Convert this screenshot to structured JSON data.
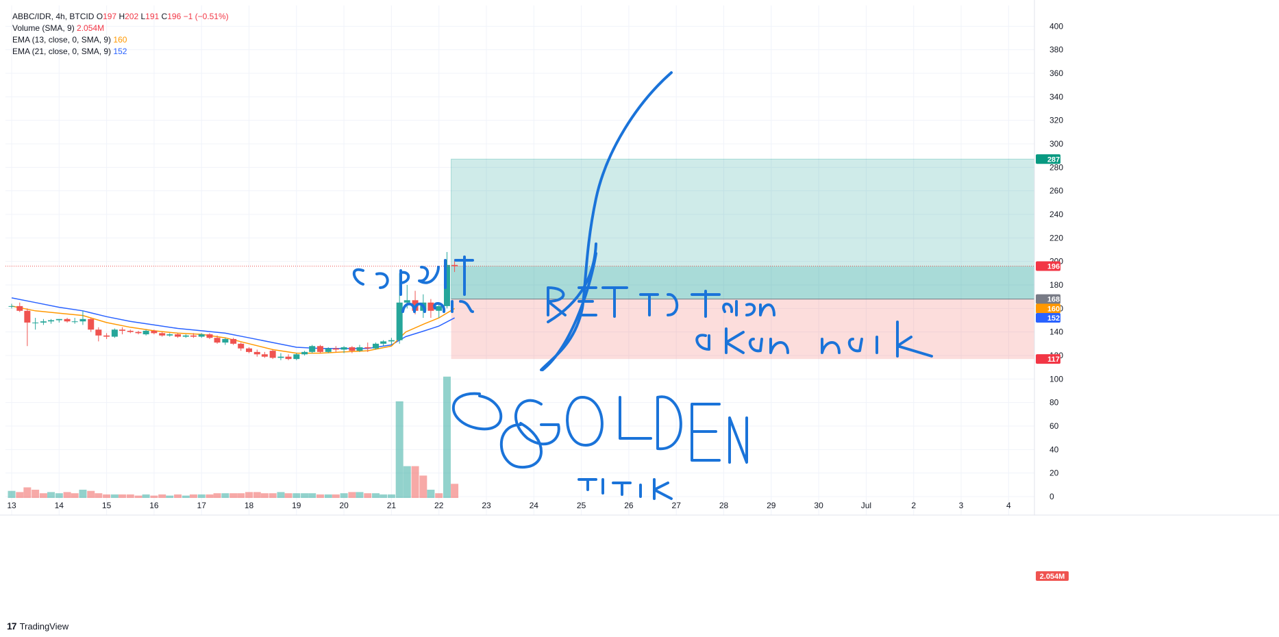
{
  "legend": {
    "symbol": "ABBC/IDR, 4h, BTCID",
    "o_label": "O",
    "o_value": "197",
    "h_label": "H",
    "h_value": "202",
    "l_label": "L",
    "l_value": "191",
    "c_label": "C",
    "c_value": "196",
    "change": "−1 (−0.51%)",
    "volume_label": "Volume (SMA, 9)",
    "volume_value": "2.054M",
    "ema13_label": "EMA (13, close, 0, SMA, 9)",
    "ema13_value": "160",
    "ema21_label": "EMA (21, close, 0, SMA, 9)",
    "ema21_value": "152"
  },
  "brand": {
    "logo": "17",
    "name": "TradingView"
  },
  "colors": {
    "up": "#26a69a",
    "down": "#ef5350",
    "ema13": "#ff9800",
    "ema21": "#2962ff",
    "target": "#089981",
    "stop": "#f23645",
    "entry": "#787b86",
    "annotation": "#1a73d9"
  },
  "chart_data": {
    "type": "candlestick",
    "price_axis": {
      "range": [
        0,
        410
      ],
      "ticks": [
        0,
        20,
        40,
        60,
        80,
        100,
        120,
        140,
        160,
        180,
        200,
        220,
        240,
        260,
        280,
        300,
        320,
        340,
        360,
        380,
        400
      ]
    },
    "time_axis": {
      "ticks": [
        "13",
        "14",
        "15",
        "16",
        "17",
        "18",
        "19",
        "20",
        "21",
        "22",
        "23",
        "24",
        "25",
        "26",
        "27",
        "28",
        "29",
        "30",
        "Jul",
        "2",
        "3",
        "4"
      ],
      "range_days": [
        13,
        35
      ]
    },
    "candles": [
      {
        "t": 13.0,
        "o": 162,
        "h": 164,
        "l": 160,
        "c": 162
      },
      {
        "t": 13.17,
        "o": 162,
        "h": 165,
        "l": 157,
        "c": 158
      },
      {
        "t": 13.33,
        "o": 158,
        "h": 160,
        "l": 128,
        "c": 148
      },
      {
        "t": 13.5,
        "o": 148,
        "h": 152,
        "l": 142,
        "c": 148
      },
      {
        "t": 13.67,
        "o": 148,
        "h": 151,
        "l": 146,
        "c": 149
      },
      {
        "t": 13.83,
        "o": 149,
        "h": 151,
        "l": 147,
        "c": 150
      },
      {
        "t": 14.0,
        "o": 150,
        "h": 151,
        "l": 148,
        "c": 151
      },
      {
        "t": 14.17,
        "o": 151,
        "h": 152,
        "l": 148,
        "c": 149
      },
      {
        "t": 14.33,
        "o": 149,
        "h": 152,
        "l": 147,
        "c": 149
      },
      {
        "t": 14.5,
        "o": 149,
        "h": 158,
        "l": 146,
        "c": 151
      },
      {
        "t": 14.67,
        "o": 151,
        "h": 152,
        "l": 140,
        "c": 142
      },
      {
        "t": 14.83,
        "o": 142,
        "h": 144,
        "l": 132,
        "c": 137
      },
      {
        "t": 15.0,
        "o": 137,
        "h": 139,
        "l": 134,
        "c": 136
      },
      {
        "t": 15.17,
        "o": 136,
        "h": 143,
        "l": 135,
        "c": 142
      },
      {
        "t": 15.33,
        "o": 142,
        "h": 144,
        "l": 138,
        "c": 141
      },
      {
        "t": 15.5,
        "o": 141,
        "h": 142,
        "l": 139,
        "c": 140
      },
      {
        "t": 15.67,
        "o": 140,
        "h": 141,
        "l": 138,
        "c": 139
      },
      {
        "t": 15.83,
        "o": 138,
        "h": 142,
        "l": 137,
        "c": 141
      },
      {
        "t": 16.0,
        "o": 141,
        "h": 142,
        "l": 138,
        "c": 139
      },
      {
        "t": 16.17,
        "o": 139,
        "h": 140,
        "l": 136,
        "c": 137
      },
      {
        "t": 16.33,
        "o": 137,
        "h": 139,
        "l": 136,
        "c": 138
      },
      {
        "t": 16.5,
        "o": 138,
        "h": 139,
        "l": 135,
        "c": 136
      },
      {
        "t": 16.67,
        "o": 136,
        "h": 138,
        "l": 135,
        "c": 137
      },
      {
        "t": 16.83,
        "o": 137,
        "h": 139,
        "l": 135,
        "c": 136
      },
      {
        "t": 17.0,
        "o": 136,
        "h": 139,
        "l": 135,
        "c": 138
      },
      {
        "t": 17.17,
        "o": 138,
        "h": 139,
        "l": 134,
        "c": 135
      },
      {
        "t": 17.33,
        "o": 135,
        "h": 137,
        "l": 130,
        "c": 131
      },
      {
        "t": 17.5,
        "o": 131,
        "h": 135,
        "l": 129,
        "c": 134
      },
      {
        "t": 17.67,
        "o": 134,
        "h": 135,
        "l": 129,
        "c": 130
      },
      {
        "t": 17.83,
        "o": 130,
        "h": 131,
        "l": 124,
        "c": 126
      },
      {
        "t": 18.0,
        "o": 126,
        "h": 127,
        "l": 122,
        "c": 123
      },
      {
        "t": 18.17,
        "o": 123,
        "h": 125,
        "l": 119,
        "c": 121
      },
      {
        "t": 18.33,
        "o": 121,
        "h": 123,
        "l": 118,
        "c": 119
      },
      {
        "t": 18.5,
        "o": 124,
        "h": 125,
        "l": 117,
        "c": 118
      },
      {
        "t": 18.67,
        "o": 118,
        "h": 122,
        "l": 116,
        "c": 119
      },
      {
        "t": 18.83,
        "o": 119,
        "h": 121,
        "l": 116,
        "c": 117
      },
      {
        "t": 19.0,
        "o": 117,
        "h": 122,
        "l": 116,
        "c": 121
      },
      {
        "t": 19.17,
        "o": 121,
        "h": 124,
        "l": 120,
        "c": 123
      },
      {
        "t": 19.33,
        "o": 123,
        "h": 129,
        "l": 122,
        "c": 128
      },
      {
        "t": 19.5,
        "o": 128,
        "h": 129,
        "l": 122,
        "c": 123
      },
      {
        "t": 19.67,
        "o": 123,
        "h": 127,
        "l": 122,
        "c": 126
      },
      {
        "t": 19.83,
        "o": 126,
        "h": 128,
        "l": 123,
        "c": 125
      },
      {
        "t": 20.0,
        "o": 125,
        "h": 128,
        "l": 122,
        "c": 127
      },
      {
        "t": 20.17,
        "o": 127,
        "h": 128,
        "l": 122,
        "c": 124
      },
      {
        "t": 20.33,
        "o": 124,
        "h": 129,
        "l": 123,
        "c": 127
      },
      {
        "t": 20.5,
        "o": 127,
        "h": 131,
        "l": 123,
        "c": 126
      },
      {
        "t": 20.67,
        "o": 126,
        "h": 131,
        "l": 125,
        "c": 130
      },
      {
        "t": 20.83,
        "o": 130,
        "h": 133,
        "l": 128,
        "c": 132
      },
      {
        "t": 21.0,
        "o": 132,
        "h": 135,
        "l": 129,
        "c": 133
      },
      {
        "t": 21.17,
        "o": 133,
        "h": 190,
        "l": 130,
        "c": 165
      },
      {
        "t": 21.33,
        "o": 165,
        "h": 180,
        "l": 160,
        "c": 167
      },
      {
        "t": 21.5,
        "o": 167,
        "h": 175,
        "l": 155,
        "c": 158
      },
      {
        "t": 21.67,
        "o": 158,
        "h": 172,
        "l": 152,
        "c": 165
      },
      {
        "t": 21.83,
        "o": 165,
        "h": 168,
        "l": 152,
        "c": 158
      },
      {
        "t": 22.0,
        "o": 158,
        "h": 165,
        "l": 152,
        "c": 162
      },
      {
        "t": 22.17,
        "o": 162,
        "h": 208,
        "l": 160,
        "c": 197
      },
      {
        "t": 22.33,
        "o": 197,
        "h": 202,
        "l": 191,
        "c": 196
      }
    ],
    "volume": [
      {
        "t": 13.0,
        "v": 6,
        "up": true
      },
      {
        "t": 13.17,
        "v": 5,
        "up": false
      },
      {
        "t": 13.33,
        "v": 9,
        "up": false
      },
      {
        "t": 13.5,
        "v": 7,
        "up": false
      },
      {
        "t": 13.67,
        "v": 4,
        "up": false
      },
      {
        "t": 13.83,
        "v": 5,
        "up": true
      },
      {
        "t": 14.0,
        "v": 4,
        "up": true
      },
      {
        "t": 14.17,
        "v": 5,
        "up": false
      },
      {
        "t": 14.33,
        "v": 4,
        "up": false
      },
      {
        "t": 14.5,
        "v": 7,
        "up": true
      },
      {
        "t": 14.67,
        "v": 6,
        "up": false
      },
      {
        "t": 14.83,
        "v": 4,
        "up": false
      },
      {
        "t": 15.0,
        "v": 3,
        "up": false
      },
      {
        "t": 15.17,
        "v": 3,
        "up": true
      },
      {
        "t": 15.33,
        "v": 3,
        "up": false
      },
      {
        "t": 15.5,
        "v": 3,
        "up": false
      },
      {
        "t": 15.67,
        "v": 2,
        "up": false
      },
      {
        "t": 15.83,
        "v": 3,
        "up": true
      },
      {
        "t": 16.0,
        "v": 2,
        "up": false
      },
      {
        "t": 16.17,
        "v": 3,
        "up": false
      },
      {
        "t": 16.33,
        "v": 2,
        "up": true
      },
      {
        "t": 16.5,
        "v": 3,
        "up": false
      },
      {
        "t": 16.67,
        "v": 2,
        "up": true
      },
      {
        "t": 16.83,
        "v": 3,
        "up": false
      },
      {
        "t": 17.0,
        "v": 3,
        "up": true
      },
      {
        "t": 17.17,
        "v": 3,
        "up": false
      },
      {
        "t": 17.33,
        "v": 4,
        "up": false
      },
      {
        "t": 17.5,
        "v": 4,
        "up": true
      },
      {
        "t": 17.67,
        "v": 4,
        "up": false
      },
      {
        "t": 17.83,
        "v": 4,
        "up": false
      },
      {
        "t": 18.0,
        "v": 5,
        "up": false
      },
      {
        "t": 18.17,
        "v": 5,
        "up": false
      },
      {
        "t": 18.33,
        "v": 4,
        "up": false
      },
      {
        "t": 18.5,
        "v": 4,
        "up": false
      },
      {
        "t": 18.67,
        "v": 5,
        "up": true
      },
      {
        "t": 18.83,
        "v": 4,
        "up": false
      },
      {
        "t": 19.0,
        "v": 4,
        "up": true
      },
      {
        "t": 19.17,
        "v": 4,
        "up": true
      },
      {
        "t": 19.33,
        "v": 4,
        "up": true
      },
      {
        "t": 19.5,
        "v": 3,
        "up": false
      },
      {
        "t": 19.67,
        "v": 3,
        "up": true
      },
      {
        "t": 19.83,
        "v": 3,
        "up": false
      },
      {
        "t": 20.0,
        "v": 4,
        "up": true
      },
      {
        "t": 20.17,
        "v": 5,
        "up": false
      },
      {
        "t": 20.33,
        "v": 5,
        "up": true
      },
      {
        "t": 20.5,
        "v": 4,
        "up": false
      },
      {
        "t": 20.67,
        "v": 4,
        "up": true
      },
      {
        "t": 20.83,
        "v": 3,
        "up": true
      },
      {
        "t": 21.0,
        "v": 3,
        "up": true
      },
      {
        "t": 21.17,
        "v": 82,
        "up": true
      },
      {
        "t": 21.33,
        "v": 27,
        "up": true
      },
      {
        "t": 21.5,
        "v": 27,
        "up": false
      },
      {
        "t": 21.67,
        "v": 19,
        "up": false
      },
      {
        "t": 21.83,
        "v": 7,
        "up": true
      },
      {
        "t": 22.0,
        "v": 4,
        "up": false
      },
      {
        "t": 22.17,
        "v": 103,
        "up": true
      },
      {
        "t": 22.33,
        "v": 12,
        "up": false
      }
    ],
    "ema13": [
      [
        13.0,
        162
      ],
      [
        13.5,
        158
      ],
      [
        14.0,
        156
      ],
      [
        14.5,
        154
      ],
      [
        15.0,
        148
      ],
      [
        15.5,
        144
      ],
      [
        16.0,
        141
      ],
      [
        16.5,
        139
      ],
      [
        17.0,
        138
      ],
      [
        17.5,
        135
      ],
      [
        18.0,
        130
      ],
      [
        18.5,
        125
      ],
      [
        19.0,
        122
      ],
      [
        19.5,
        122
      ],
      [
        20.0,
        123
      ],
      [
        20.5,
        124
      ],
      [
        21.0,
        128
      ],
      [
        21.3,
        140
      ],
      [
        21.7,
        147
      ],
      [
        22.0,
        152
      ],
      [
        22.33,
        160
      ]
    ],
    "ema21": [
      [
        13.0,
        169
      ],
      [
        13.5,
        165
      ],
      [
        14.0,
        161
      ],
      [
        14.5,
        158
      ],
      [
        15.0,
        153
      ],
      [
        15.5,
        149
      ],
      [
        16.0,
        146
      ],
      [
        16.5,
        143
      ],
      [
        17.0,
        141
      ],
      [
        17.5,
        139
      ],
      [
        18.0,
        135
      ],
      [
        18.5,
        131
      ],
      [
        19.0,
        127
      ],
      [
        19.5,
        126
      ],
      [
        20.0,
        126
      ],
      [
        20.5,
        126
      ],
      [
        21.0,
        129
      ],
      [
        21.3,
        136
      ],
      [
        21.7,
        141
      ],
      [
        22.0,
        145
      ],
      [
        22.33,
        152
      ]
    ],
    "position": {
      "start": 22.2,
      "end": 35,
      "target": 287,
      "entry": 168,
      "stop": 117,
      "current": 196
    },
    "price_tags": [
      {
        "value": 287,
        "label": "287",
        "color": "#089981"
      },
      {
        "value": 196,
        "label": "196",
        "color": "#f23645"
      },
      {
        "value": 168,
        "label": "168",
        "color": "#787b86"
      },
      {
        "value": 160,
        "label": "160",
        "color": "#ff9800"
      },
      {
        "value": 152,
        "label": "152",
        "color": "#2962ff"
      },
      {
        "value": 117,
        "label": "117",
        "color": "#f23645"
      }
    ],
    "volume_tag": "2.054M"
  }
}
